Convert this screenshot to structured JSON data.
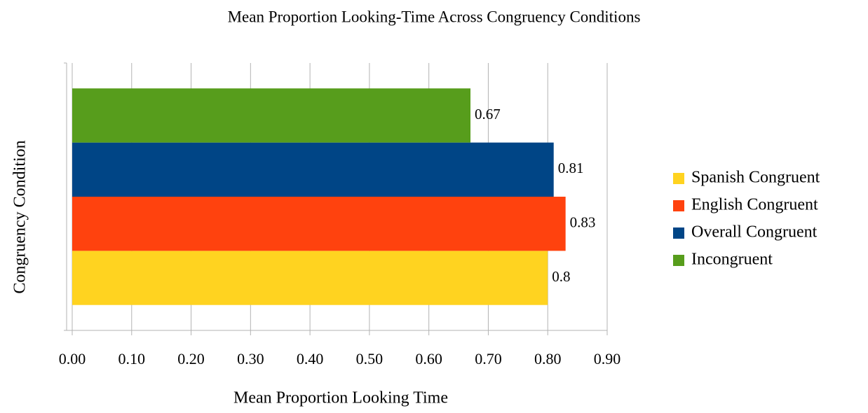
{
  "chart_data": {
    "type": "bar",
    "orientation": "horizontal",
    "title": "Mean Proportion Looking-Time Across Congruency Conditions",
    "x_label": "Mean Proportion Looking Time",
    "y_label": "Congruency Condition",
    "categories": [
      null
    ],
    "series": [
      {
        "name": "Spanish Congruent",
        "color": "#ffd320",
        "values": [
          0.8
        ]
      },
      {
        "name": "English Congruent",
        "color": "#ff420e",
        "values": [
          0.83
        ]
      },
      {
        "name": "Overall Congruent",
        "color": "#004586",
        "values": [
          0.81
        ]
      },
      {
        "name": "Incongruent",
        "color": "#579d1c",
        "values": [
          0.67
        ]
      }
    ],
    "xlim": [
      0,
      0.9
    ],
    "xticks": [
      {
        "value": 0,
        "label": "0.00"
      },
      {
        "value": 0.1,
        "label": "0.10"
      },
      {
        "value": 0.2,
        "label": "0.20"
      },
      {
        "value": 0.3,
        "label": "0.30"
      },
      {
        "value": 0.4,
        "label": "0.40"
      },
      {
        "value": 0.5,
        "label": "0.50"
      },
      {
        "value": 0.6,
        "label": "0.60"
      },
      {
        "value": 0.7,
        "label": "0.70"
      },
      {
        "value": 0.8,
        "label": "0.80"
      },
      {
        "value": 0.9,
        "label": "0.90"
      }
    ],
    "grid": true,
    "data_labels": true,
    "legend": "right"
  }
}
